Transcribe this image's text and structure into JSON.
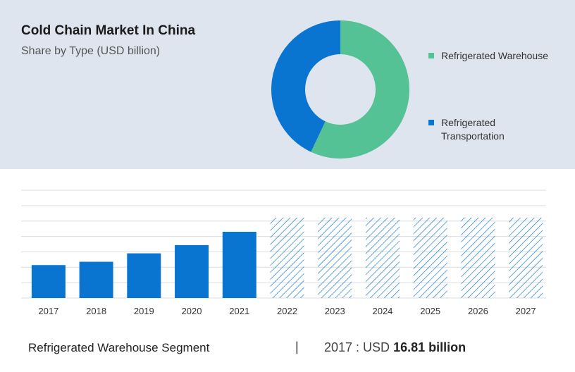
{
  "header": {
    "title": "Cold Chain Market In China",
    "subtitle": "Share by Type (USD billion)"
  },
  "chart_data": [
    {
      "type": "pie",
      "variant": "donut",
      "series": [
        {
          "name": "Refrigerated Warehouse",
          "share": 0.57,
          "color": "#55c295"
        },
        {
          "name": "Refrigerated Transportation",
          "share": 0.43,
          "color": "#0a74d1"
        }
      ],
      "legend_position": "right"
    },
    {
      "type": "bar",
      "categories": [
        "2017",
        "2018",
        "2019",
        "2020",
        "2021",
        "2022",
        "2023",
        "2024",
        "2025",
        "2026",
        "2027"
      ],
      "values": [
        16.81,
        18.5,
        22.8,
        27.0,
        33.8,
        41,
        41,
        41,
        41,
        41,
        41
      ],
      "forecast_from": "2022",
      "ylim": [
        0,
        55
      ],
      "grid": true,
      "colors": {
        "actual": "#0a74d1",
        "forecast": "#0a74d1"
      }
    }
  ],
  "footer": {
    "segment_label": "Refrigerated Warehouse Segment",
    "separator": "|",
    "year_prefix": "2017 : USD ",
    "value_text": "16.81 billion"
  }
}
